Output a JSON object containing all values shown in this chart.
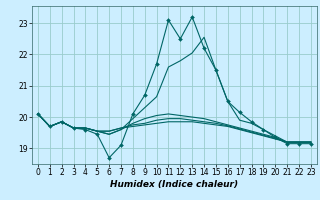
{
  "xlabel": "Humidex (Indice chaleur)",
  "bg_color": "#cceeff",
  "grid_color": "#99cccc",
  "line_color": "#006666",
  "xlim": [
    -0.5,
    23.5
  ],
  "ylim": [
    18.5,
    23.55
  ],
  "yticks": [
    19,
    20,
    21,
    22,
    23
  ],
  "xticks": [
    0,
    1,
    2,
    3,
    4,
    5,
    6,
    7,
    8,
    9,
    10,
    11,
    12,
    13,
    14,
    15,
    16,
    17,
    18,
    19,
    20,
    21,
    22,
    23
  ],
  "lines": [
    [
      20.1,
      19.7,
      19.85,
      19.65,
      19.6,
      19.45,
      18.7,
      19.1,
      20.1,
      20.7,
      21.7,
      23.1,
      22.5,
      23.2,
      22.2,
      21.5,
      20.5,
      20.15,
      19.85,
      19.6,
      19.35,
      19.15,
      19.15,
      19.15
    ],
    [
      20.1,
      19.7,
      19.85,
      19.65,
      19.65,
      19.55,
      19.55,
      19.65,
      19.7,
      19.75,
      19.8,
      19.85,
      19.85,
      19.85,
      19.8,
      19.75,
      19.7,
      19.6,
      19.5,
      19.4,
      19.3,
      19.2,
      19.2,
      19.2
    ],
    [
      20.1,
      19.7,
      19.85,
      19.65,
      19.65,
      19.55,
      19.55,
      19.65,
      19.75,
      19.8,
      19.9,
      19.95,
      19.95,
      19.9,
      19.85,
      19.8,
      19.72,
      19.62,
      19.52,
      19.42,
      19.32,
      19.2,
      19.2,
      19.2
    ],
    [
      20.1,
      19.7,
      19.85,
      19.65,
      19.65,
      19.55,
      19.45,
      19.6,
      19.8,
      19.95,
      20.05,
      20.1,
      20.05,
      20.0,
      19.95,
      19.85,
      19.75,
      19.65,
      19.55,
      19.45,
      19.35,
      19.2,
      19.2,
      19.2
    ],
    [
      20.1,
      19.7,
      19.85,
      19.65,
      19.65,
      19.55,
      19.45,
      19.6,
      19.95,
      20.3,
      20.65,
      21.6,
      21.8,
      22.05,
      22.55,
      21.5,
      20.5,
      19.9,
      19.8,
      19.6,
      19.4,
      19.2,
      19.2,
      19.2
    ]
  ],
  "marker_line": 0,
  "tick_fontsize": 5.5,
  "xlabel_fontsize": 6.5
}
